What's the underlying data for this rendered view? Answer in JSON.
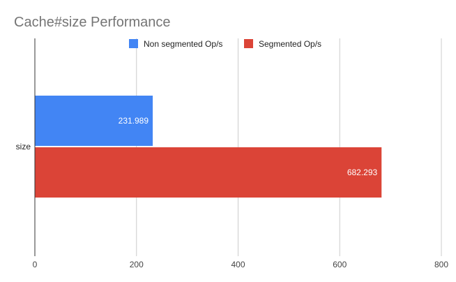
{
  "chart_data": {
    "type": "bar",
    "orientation": "horizontal",
    "title": "Cache#size Performance",
    "categories": [
      "size"
    ],
    "series": [
      {
        "name": "Non segmented Op/s",
        "values": [
          231.989
        ],
        "color": "#4285f4",
        "label": "231.989"
      },
      {
        "name": "Segmented Op/s",
        "values": [
          682.293
        ],
        "color": "#db4437",
        "label": "682.293"
      }
    ],
    "xlim": [
      0,
      800
    ],
    "xticks": [
      0,
      200,
      400,
      600,
      800
    ],
    "xtick_labels": [
      "0",
      "200",
      "400",
      "600",
      "800"
    ],
    "grid": true,
    "legend_position": "top"
  }
}
